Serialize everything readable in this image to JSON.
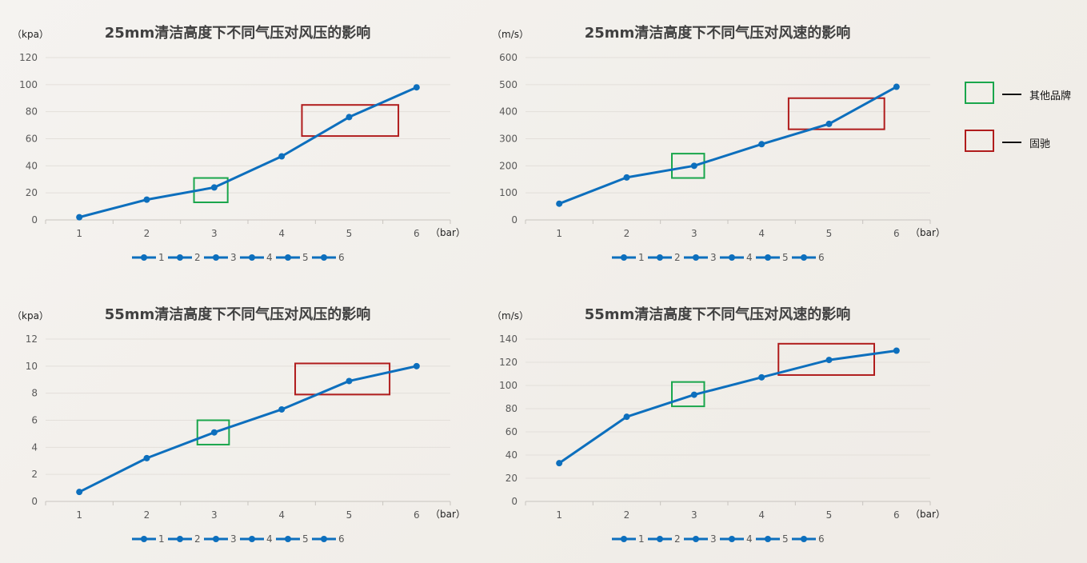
{
  "colors": {
    "series": "#0d6fbd",
    "green_box": "#1aa64c",
    "red_box": "#b01c1c"
  },
  "side_legend": [
    {
      "label": "其他品牌",
      "box_color": "#1aa64c"
    },
    {
      "label": "固驰",
      "box_color": "#b01c1c"
    }
  ],
  "chart_data": [
    {
      "type": "line",
      "title": "25mm清洁高度下不同气压对风压的影响",
      "unit_label": "（kpa）",
      "x_unit_label": "（bar）",
      "categories": [
        "1",
        "2",
        "3",
        "4",
        "5",
        "6"
      ],
      "values": [
        2,
        15,
        24,
        47,
        76,
        98
      ],
      "ylim": [
        0,
        120
      ],
      "yticks": [
        0,
        20,
        40,
        60,
        80,
        100,
        120
      ],
      "grid": true,
      "legend": {
        "position": "bottom",
        "entries": [
          "1",
          "2",
          "3",
          "4",
          "5",
          "6"
        ]
      },
      "annotations": [
        {
          "kind": "green",
          "x_from": 2.7,
          "x_to": 3.2,
          "y_from": 13,
          "y_to": 31
        },
        {
          "kind": "red",
          "x_from": 4.3,
          "x_to": 5.73,
          "y_from": 62,
          "y_to": 85
        }
      ]
    },
    {
      "type": "line",
      "title": "25mm清洁高度下不同气压对风速的影响",
      "unit_label": "（m/s）",
      "x_unit_label": "（bar）",
      "categories": [
        "1",
        "2",
        "3",
        "4",
        "5",
        "6"
      ],
      "values": [
        60,
        157,
        200,
        280,
        355,
        492
      ],
      "ylim": [
        0,
        600
      ],
      "yticks": [
        0,
        100,
        200,
        300,
        400,
        500,
        600
      ],
      "grid": true,
      "legend": {
        "position": "bottom",
        "entries": [
          "1",
          "2",
          "3",
          "4",
          "5",
          "6"
        ]
      },
      "annotations": [
        {
          "kind": "green",
          "x_from": 2.67,
          "x_to": 3.15,
          "y_from": 155,
          "y_to": 245
        },
        {
          "kind": "red",
          "x_from": 4.4,
          "x_to": 5.82,
          "y_from": 335,
          "y_to": 450
        }
      ]
    },
    {
      "type": "line",
      "title": "55mm清洁高度下不同气压对风压的影响",
      "unit_label": "（kpa）",
      "x_unit_label": "（bar）",
      "categories": [
        "1",
        "2",
        "3",
        "4",
        "5",
        "6"
      ],
      "values": [
        0.7,
        3.2,
        5.1,
        6.8,
        8.9,
        10
      ],
      "ylim": [
        0,
        12
      ],
      "yticks": [
        0,
        2,
        4,
        6,
        8,
        10,
        12
      ],
      "grid": true,
      "legend": {
        "position": "bottom",
        "entries": [
          "1",
          "2",
          "3",
          "4",
          "5",
          "6"
        ]
      },
      "annotations": [
        {
          "kind": "green",
          "x_from": 2.75,
          "x_to": 3.22,
          "y_from": 4.2,
          "y_to": 6.0
        },
        {
          "kind": "red",
          "x_from": 4.2,
          "x_to": 5.6,
          "y_from": 7.9,
          "y_to": 10.2
        }
      ]
    },
    {
      "type": "line",
      "title": "55mm清洁高度下不同气压对风速的影响",
      "unit_label": "（m/s）",
      "x_unit_label": "（bar）",
      "categories": [
        "1",
        "2",
        "3",
        "4",
        "5",
        "6"
      ],
      "values": [
        33,
        73,
        92,
        107,
        122,
        130
      ],
      "ylim": [
        0,
        140
      ],
      "yticks": [
        0,
        20,
        40,
        60,
        80,
        100,
        120,
        140
      ],
      "grid": true,
      "legend": {
        "position": "bottom",
        "entries": [
          "1",
          "2",
          "3",
          "4",
          "5",
          "6"
        ]
      },
      "annotations": [
        {
          "kind": "green",
          "x_from": 2.67,
          "x_to": 3.15,
          "y_from": 82,
          "y_to": 103
        },
        {
          "kind": "red",
          "x_from": 4.25,
          "x_to": 5.67,
          "y_from": 109,
          "y_to": 136
        }
      ]
    }
  ]
}
